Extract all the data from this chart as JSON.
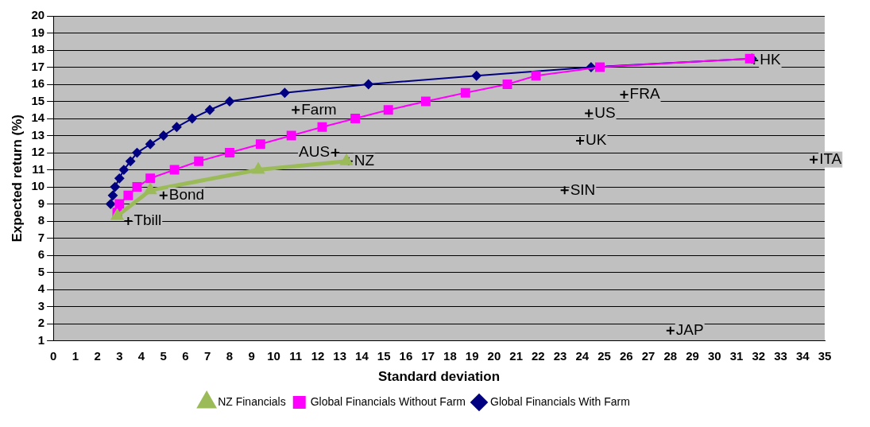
{
  "chart_data": {
    "type": "line",
    "xlabel": "Standard deviation",
    "ylabel": "Expected return (%)",
    "xlim": [
      0,
      35
    ],
    "xticks": [
      0,
      1,
      2,
      3,
      4,
      5,
      6,
      7,
      8,
      9,
      10,
      11,
      12,
      13,
      14,
      15,
      16,
      17,
      18,
      19,
      20,
      21,
      22,
      23,
      24,
      25,
      26,
      27,
      28,
      29,
      30,
      31,
      32,
      33,
      34,
      35
    ],
    "ylim": [
      1,
      20
    ],
    "yticks": [
      1,
      2,
      3,
      4,
      5,
      6,
      7,
      8,
      9,
      10,
      11,
      12,
      13,
      14,
      15,
      16,
      17,
      18,
      19,
      20
    ],
    "grid": "y",
    "legend": "bottom",
    "series": [
      {
        "name": "NZ Financials",
        "color": "#9bbb59",
        "marker": "triangle",
        "x": [
          2.9,
          4.4,
          9.3,
          13.3
        ],
        "values": [
          8.3,
          9.8,
          11.0,
          11.5
        ]
      },
      {
        "name": "Global Financials Without Farm",
        "color": "#ff00ff",
        "marker": "square",
        "x": [
          2.9,
          3.0,
          3.4,
          3.8,
          4.4,
          5.5,
          6.6,
          8.0,
          9.4,
          10.8,
          12.2,
          13.7,
          15.2,
          16.9,
          18.7,
          20.6,
          21.9,
          24.8,
          31.6
        ],
        "values": [
          8.5,
          9.0,
          9.5,
          10.0,
          10.5,
          11.0,
          11.5,
          12.0,
          12.5,
          13.0,
          13.5,
          14.0,
          14.5,
          15.0,
          15.5,
          16.0,
          16.5,
          17.0,
          17.5
        ]
      },
      {
        "name": "Global Financials With Farm",
        "color": "#000080",
        "marker": "diamond",
        "x": [
          2.6,
          2.7,
          2.8,
          3.0,
          3.2,
          3.5,
          3.8,
          4.4,
          5.0,
          5.6,
          6.3,
          7.1,
          8.0,
          10.5,
          14.3,
          19.2,
          24.4,
          31.7
        ],
        "values": [
          9.0,
          9.5,
          10.0,
          10.5,
          11.0,
          11.5,
          12.0,
          12.5,
          13.0,
          13.5,
          14.0,
          14.5,
          15.0,
          15.5,
          16.0,
          16.5,
          17.0,
          17.5
        ]
      },
      {
        "type": "scatter",
        "color": "#000000",
        "marker": "cross",
        "x": [
          11.0,
          25.9,
          24.3,
          23.9,
          34.5,
          23.2,
          28.0,
          12.8,
          13.4,
          5.0,
          3.4,
          31.8
        ],
        "values": [
          14.5,
          15.4,
          14.3,
          12.7,
          11.6,
          9.8,
          1.6,
          12.0,
          11.5,
          9.5,
          8.0,
          17.4
        ],
        "value_labels": [
          "Farm",
          "FRA",
          "US",
          "UK",
          "ITA",
          "SIN",
          "JAP",
          "AUS",
          "NZ",
          "Bond",
          "Tbill",
          "HK"
        ]
      }
    ]
  }
}
